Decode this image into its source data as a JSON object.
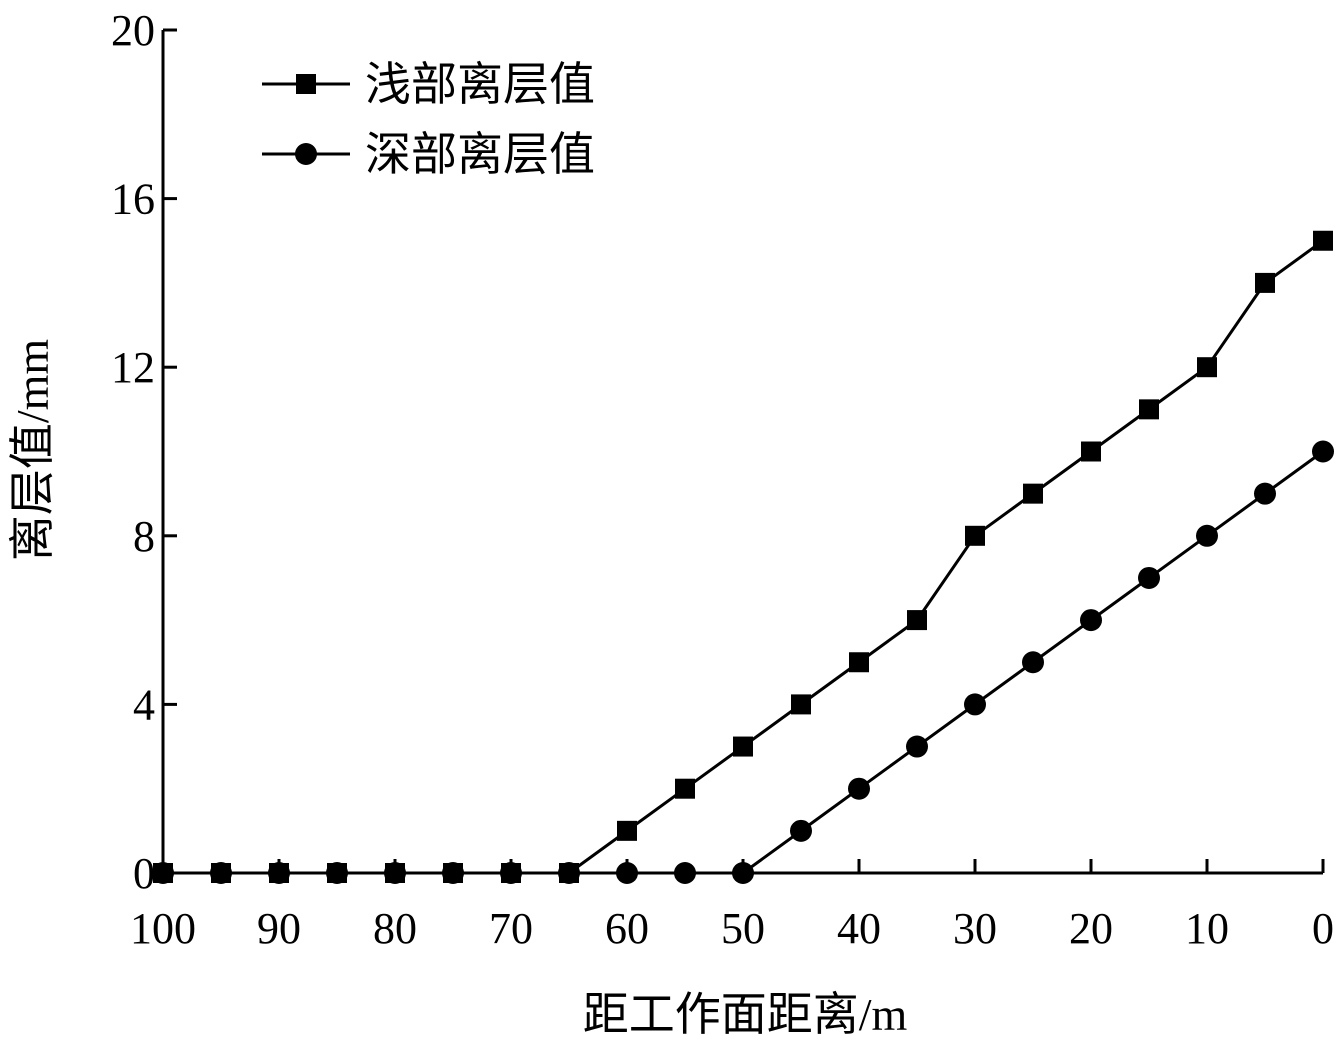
{
  "chart_data": {
    "type": "line",
    "xlabel": "距工作面距离/m",
    "ylabel": "离层值/mm",
    "xlim": [
      100,
      0
    ],
    "ylim": [
      0,
      20
    ],
    "x_reversed": true,
    "x_ticks": [
      100,
      90,
      80,
      70,
      60,
      50,
      40,
      30,
      20,
      10,
      0
    ],
    "y_ticks": [
      0,
      4,
      8,
      12,
      16,
      20
    ],
    "x": [
      100,
      95,
      90,
      85,
      80,
      75,
      70,
      65,
      60,
      55,
      50,
      45,
      40,
      35,
      30,
      25,
      20,
      15,
      10,
      5,
      0
    ],
    "grid": false,
    "legend_position": "top-left",
    "series": [
      {
        "name": "浅部离层值",
        "marker": "square",
        "color": "#000000",
        "values": [
          0,
          0,
          0,
          0,
          0,
          0,
          0,
          0,
          1,
          2,
          3,
          4,
          5,
          6,
          8,
          9,
          10,
          11,
          12,
          14,
          15
        ]
      },
      {
        "name": "深部离层值",
        "marker": "circle",
        "color": "#000000",
        "values": [
          0,
          0,
          0,
          0,
          0,
          0,
          0,
          0,
          0,
          0,
          0,
          1,
          2,
          3,
          4,
          5,
          6,
          7,
          8,
          9,
          10
        ]
      }
    ]
  }
}
